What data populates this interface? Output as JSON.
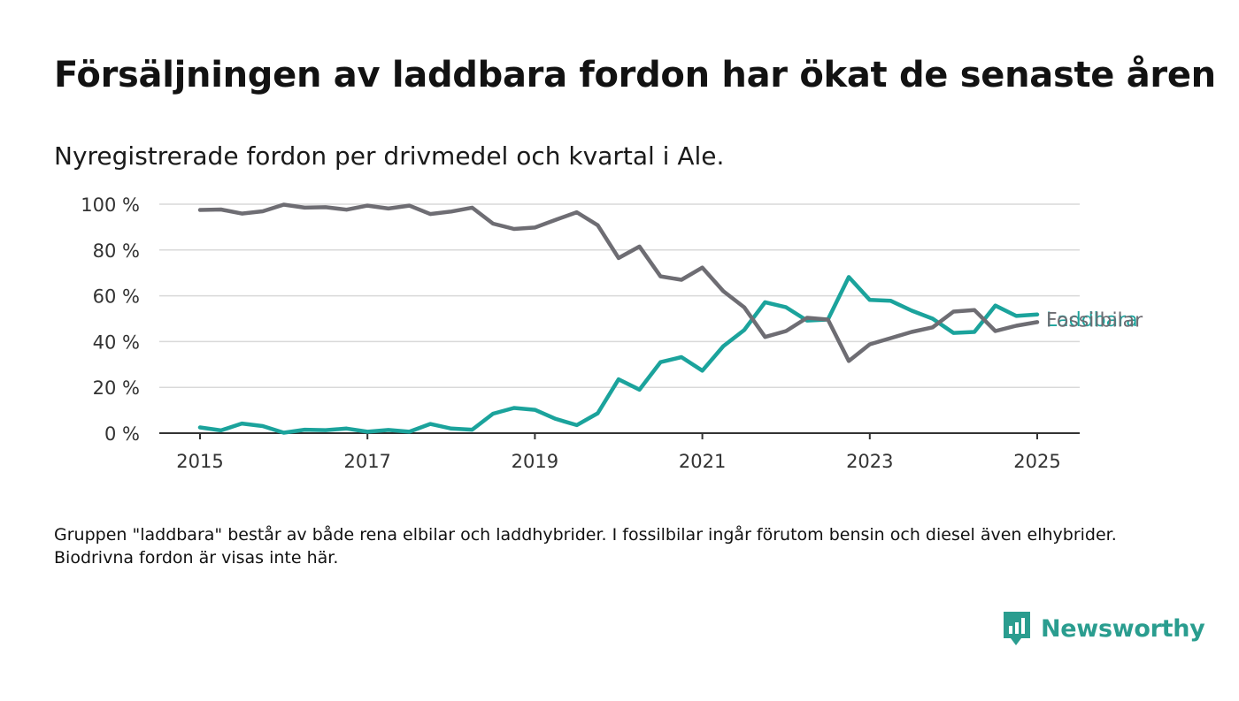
{
  "title": "Försäljningen av laddbara fordon har ökat de senaste åren",
  "subtitle": "Nyregistrerade fordon per drivmedel och kvartal i Ale.",
  "note": "Gruppen \"laddbara\" består av både rena elbilar och laddhybrider. I fossilbilar ingår förutom bensin och diesel även elhybrider. Biodrivna fordon är visas inte här.",
  "brand": {
    "name": "Newsworthy",
    "icon": "newsworthy-logo-icon"
  },
  "colors": {
    "fossil": "#6e6d73",
    "laddbara": "#1ba39c",
    "grid": "#d9d9d9",
    "axis": "#333333",
    "brand": "#2a9d8f"
  },
  "chart_data": {
    "type": "line",
    "title": "",
    "xlabel": "",
    "ylabel": "",
    "x_start_year": 2015,
    "x_step": "quarter",
    "xlim": [
      2014.75,
      2025.5
    ],
    "ylim": [
      0,
      100
    ],
    "x_ticks": [
      2015,
      2017,
      2019,
      2021,
      2023,
      2025
    ],
    "x_tick_labels": [
      "2015",
      "2017",
      "2019",
      "2021",
      "2023",
      "2025"
    ],
    "y_ticks": [
      0,
      20,
      40,
      60,
      80,
      100
    ],
    "y_tick_labels": [
      "0 %",
      "20 %",
      "40 %",
      "60 %",
      "80 %",
      "100 %"
    ],
    "grid": true,
    "legend": "direct labels at line ends",
    "series": [
      {
        "name": "Fossilbilar",
        "key": "fossil",
        "values": [
          97.5,
          97.7,
          95.9,
          96.9,
          99.8,
          98.5,
          98.7,
          97.6,
          99.4,
          98.1,
          99.4,
          95.7,
          96.8,
          98.5,
          91.5,
          89.2,
          89.8,
          93.2,
          96.5,
          90.8,
          76.5,
          81.5,
          68.5,
          67.0,
          72.3,
          62.0,
          55.0,
          42.0,
          44.6,
          50.4,
          49.6,
          31.5,
          38.8,
          41.5,
          44.2,
          46.2,
          53.1,
          53.8,
          44.6,
          46.9,
          48.5
        ]
      },
      {
        "name": "Laddbara",
        "key": "laddbara",
        "values": [
          2.5,
          1.2,
          4.2,
          3.1,
          0.2,
          1.5,
          1.3,
          2.0,
          0.6,
          1.4,
          0.6,
          4.0,
          2.0,
          1.5,
          8.5,
          11.0,
          10.2,
          6.2,
          3.5,
          8.7,
          23.5,
          19.0,
          31.0,
          33.2,
          27.3,
          38.0,
          45.0,
          57.2,
          55.0,
          49.2,
          49.6,
          68.2,
          58.2,
          57.8,
          53.5,
          50.0,
          43.8,
          44.2,
          55.7,
          51.2,
          51.8
        ]
      }
    ]
  }
}
